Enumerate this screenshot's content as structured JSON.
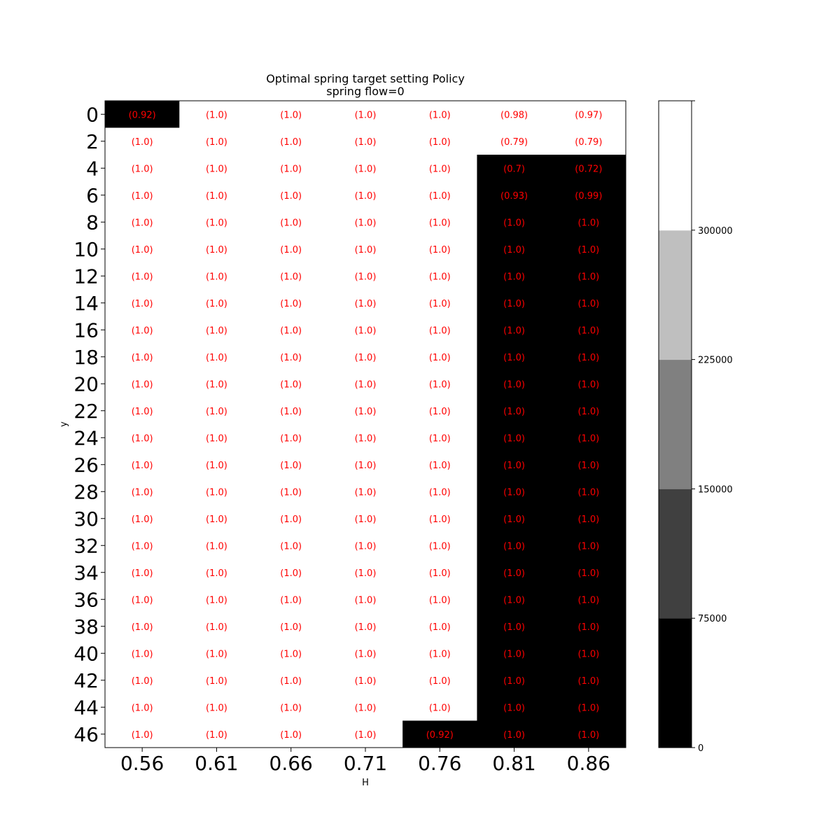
{
  "chart_data": {
    "type": "heatmap",
    "title": "Optimal spring target setting Policy",
    "subtitle": "spring flow=0",
    "xlabel": "H",
    "ylabel": "y",
    "x_categories": [
      "0.56",
      "0.61",
      "0.66",
      "0.71",
      "0.76",
      "0.81",
      "0.86"
    ],
    "y_categories": [
      "0",
      "2",
      "4",
      "6",
      "8",
      "10",
      "12",
      "14",
      "16",
      "18",
      "20",
      "22",
      "24",
      "26",
      "28",
      "30",
      "32",
      "34",
      "36",
      "38",
      "40",
      "42",
      "44",
      "46"
    ],
    "values": [
      [
        0,
        375000,
        375000,
        375000,
        375000,
        375000,
        375000
      ],
      [
        375000,
        375000,
        375000,
        375000,
        375000,
        375000,
        375000
      ],
      [
        375000,
        375000,
        375000,
        375000,
        375000,
        0,
        0
      ],
      [
        375000,
        375000,
        375000,
        375000,
        375000,
        0,
        0
      ],
      [
        375000,
        375000,
        375000,
        375000,
        375000,
        0,
        0
      ],
      [
        375000,
        375000,
        375000,
        375000,
        375000,
        0,
        0
      ],
      [
        375000,
        375000,
        375000,
        375000,
        375000,
        0,
        0
      ],
      [
        375000,
        375000,
        375000,
        375000,
        375000,
        0,
        0
      ],
      [
        375000,
        375000,
        375000,
        375000,
        375000,
        0,
        0
      ],
      [
        375000,
        375000,
        375000,
        375000,
        375000,
        0,
        0
      ],
      [
        375000,
        375000,
        375000,
        375000,
        375000,
        0,
        0
      ],
      [
        375000,
        375000,
        375000,
        375000,
        375000,
        0,
        0
      ],
      [
        375000,
        375000,
        375000,
        375000,
        375000,
        0,
        0
      ],
      [
        375000,
        375000,
        375000,
        375000,
        375000,
        0,
        0
      ],
      [
        375000,
        375000,
        375000,
        375000,
        375000,
        0,
        0
      ],
      [
        375000,
        375000,
        375000,
        375000,
        375000,
        0,
        0
      ],
      [
        375000,
        375000,
        375000,
        375000,
        375000,
        0,
        0
      ],
      [
        375000,
        375000,
        375000,
        375000,
        375000,
        0,
        0
      ],
      [
        375000,
        375000,
        375000,
        375000,
        375000,
        0,
        0
      ],
      [
        375000,
        375000,
        375000,
        375000,
        375000,
        0,
        0
      ],
      [
        375000,
        375000,
        375000,
        375000,
        375000,
        0,
        0
      ],
      [
        375000,
        375000,
        375000,
        375000,
        375000,
        0,
        0
      ],
      [
        375000,
        375000,
        375000,
        375000,
        375000,
        0,
        0
      ],
      [
        375000,
        375000,
        375000,
        375000,
        0,
        0,
        0
      ]
    ],
    "annotations": [
      [
        "(0.92)",
        "(1.0)",
        "(1.0)",
        "(1.0)",
        "(1.0)",
        "(0.98)",
        "(0.97)"
      ],
      [
        "(1.0)",
        "(1.0)",
        "(1.0)",
        "(1.0)",
        "(1.0)",
        "(0.79)",
        "(0.79)"
      ],
      [
        "(1.0)",
        "(1.0)",
        "(1.0)",
        "(1.0)",
        "(1.0)",
        "(0.7)",
        "(0.72)"
      ],
      [
        "(1.0)",
        "(1.0)",
        "(1.0)",
        "(1.0)",
        "(1.0)",
        "(0.93)",
        "(0.99)"
      ],
      [
        "(1.0)",
        "(1.0)",
        "(1.0)",
        "(1.0)",
        "(1.0)",
        "(1.0)",
        "(1.0)"
      ],
      [
        "(1.0)",
        "(1.0)",
        "(1.0)",
        "(1.0)",
        "(1.0)",
        "(1.0)",
        "(1.0)"
      ],
      [
        "(1.0)",
        "(1.0)",
        "(1.0)",
        "(1.0)",
        "(1.0)",
        "(1.0)",
        "(1.0)"
      ],
      [
        "(1.0)",
        "(1.0)",
        "(1.0)",
        "(1.0)",
        "(1.0)",
        "(1.0)",
        "(1.0)"
      ],
      [
        "(1.0)",
        "(1.0)",
        "(1.0)",
        "(1.0)",
        "(1.0)",
        "(1.0)",
        "(1.0)"
      ],
      [
        "(1.0)",
        "(1.0)",
        "(1.0)",
        "(1.0)",
        "(1.0)",
        "(1.0)",
        "(1.0)"
      ],
      [
        "(1.0)",
        "(1.0)",
        "(1.0)",
        "(1.0)",
        "(1.0)",
        "(1.0)",
        "(1.0)"
      ],
      [
        "(1.0)",
        "(1.0)",
        "(1.0)",
        "(1.0)",
        "(1.0)",
        "(1.0)",
        "(1.0)"
      ],
      [
        "(1.0)",
        "(1.0)",
        "(1.0)",
        "(1.0)",
        "(1.0)",
        "(1.0)",
        "(1.0)"
      ],
      [
        "(1.0)",
        "(1.0)",
        "(1.0)",
        "(1.0)",
        "(1.0)",
        "(1.0)",
        "(1.0)"
      ],
      [
        "(1.0)",
        "(1.0)",
        "(1.0)",
        "(1.0)",
        "(1.0)",
        "(1.0)",
        "(1.0)"
      ],
      [
        "(1.0)",
        "(1.0)",
        "(1.0)",
        "(1.0)",
        "(1.0)",
        "(1.0)",
        "(1.0)"
      ],
      [
        "(1.0)",
        "(1.0)",
        "(1.0)",
        "(1.0)",
        "(1.0)",
        "(1.0)",
        "(1.0)"
      ],
      [
        "(1.0)",
        "(1.0)",
        "(1.0)",
        "(1.0)",
        "(1.0)",
        "(1.0)",
        "(1.0)"
      ],
      [
        "(1.0)",
        "(1.0)",
        "(1.0)",
        "(1.0)",
        "(1.0)",
        "(1.0)",
        "(1.0)"
      ],
      [
        "(1.0)",
        "(1.0)",
        "(1.0)",
        "(1.0)",
        "(1.0)",
        "(1.0)",
        "(1.0)"
      ],
      [
        "(1.0)",
        "(1.0)",
        "(1.0)",
        "(1.0)",
        "(1.0)",
        "(1.0)",
        "(1.0)"
      ],
      [
        "(1.0)",
        "(1.0)",
        "(1.0)",
        "(1.0)",
        "(1.0)",
        "(1.0)",
        "(1.0)"
      ],
      [
        "(1.0)",
        "(1.0)",
        "(1.0)",
        "(1.0)",
        "(1.0)",
        "(1.0)",
        "(1.0)"
      ],
      [
        "(1.0)",
        "(1.0)",
        "(1.0)",
        "(1.0)",
        "(0.92)",
        "(1.0)",
        "(1.0)"
      ]
    ],
    "annotation_color": "#ff0000",
    "colorbar": {
      "range": [
        0,
        375000
      ],
      "ticks": [
        0,
        75000,
        150000,
        225000,
        300000
      ],
      "tick_labels": [
        "0",
        "75000",
        "150000",
        "225000",
        "300000"
      ],
      "bins": [
        {
          "from": 0,
          "to": 75000,
          "color": "#000000"
        },
        {
          "from": 75000,
          "to": 150000,
          "color": "#404040"
        },
        {
          "from": 150000,
          "to": 225000,
          "color": "#808080"
        },
        {
          "from": 225000,
          "to": 300000,
          "color": "#bfbfbf"
        },
        {
          "from": 300000,
          "to": 375000,
          "color": "#ffffff"
        }
      ]
    },
    "grid": false
  }
}
